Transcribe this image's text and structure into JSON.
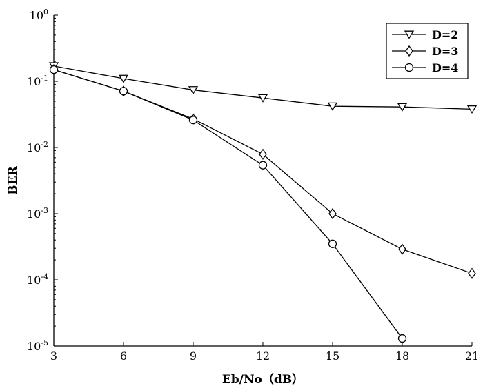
{
  "chart_data": {
    "type": "line",
    "title": "",
    "xlabel": "Eb/No（dB）",
    "ylabel": "BER",
    "x_scale": "linear",
    "y_scale": "log",
    "xlim": [
      3,
      21
    ],
    "ylim": [
      1e-05,
      1
    ],
    "x_ticks": [
      {
        "value": 3,
        "label": "3"
      },
      {
        "value": 6,
        "label": "6"
      },
      {
        "value": 9,
        "label": "9"
      },
      {
        "value": 12,
        "label": "12"
      },
      {
        "value": 15,
        "label": "15"
      },
      {
        "value": 18,
        "label": "18"
      },
      {
        "value": 21,
        "label": "21"
      }
    ],
    "y_ticks": [
      {
        "value": 1,
        "mantissa": "10",
        "exponent": "0"
      },
      {
        "value": 0.1,
        "mantissa": "10",
        "exponent": "-1"
      },
      {
        "value": 0.01,
        "mantissa": "10",
        "exponent": "-2"
      },
      {
        "value": 0.001,
        "mantissa": "10",
        "exponent": "-3"
      },
      {
        "value": 0.0001,
        "mantissa": "10",
        "exponent": "-4"
      },
      {
        "value": 1e-05,
        "mantissa": "10",
        "exponent": "-5"
      }
    ],
    "grid": false,
    "legend_position": "top-right",
    "series": [
      {
        "name": "D=2",
        "marker": "triangle-down",
        "x": [
          3,
          6,
          9,
          12,
          15,
          18,
          21
        ],
        "y": [
          0.17,
          0.11,
          0.074,
          0.056,
          0.042,
          0.041,
          0.038
        ]
      },
      {
        "name": "D=3",
        "marker": "diamond",
        "x": [
          3,
          6,
          9,
          12,
          15,
          18,
          21
        ],
        "y": [
          0.15,
          0.071,
          0.027,
          0.0079,
          0.001,
          0.00029,
          0.000125
        ]
      },
      {
        "name": "D=4",
        "marker": "circle",
        "x": [
          3,
          6,
          9,
          12,
          15,
          18
        ],
        "y": [
          0.15,
          0.071,
          0.026,
          0.0054,
          0.00035,
          1.3e-05
        ]
      }
    ]
  }
}
